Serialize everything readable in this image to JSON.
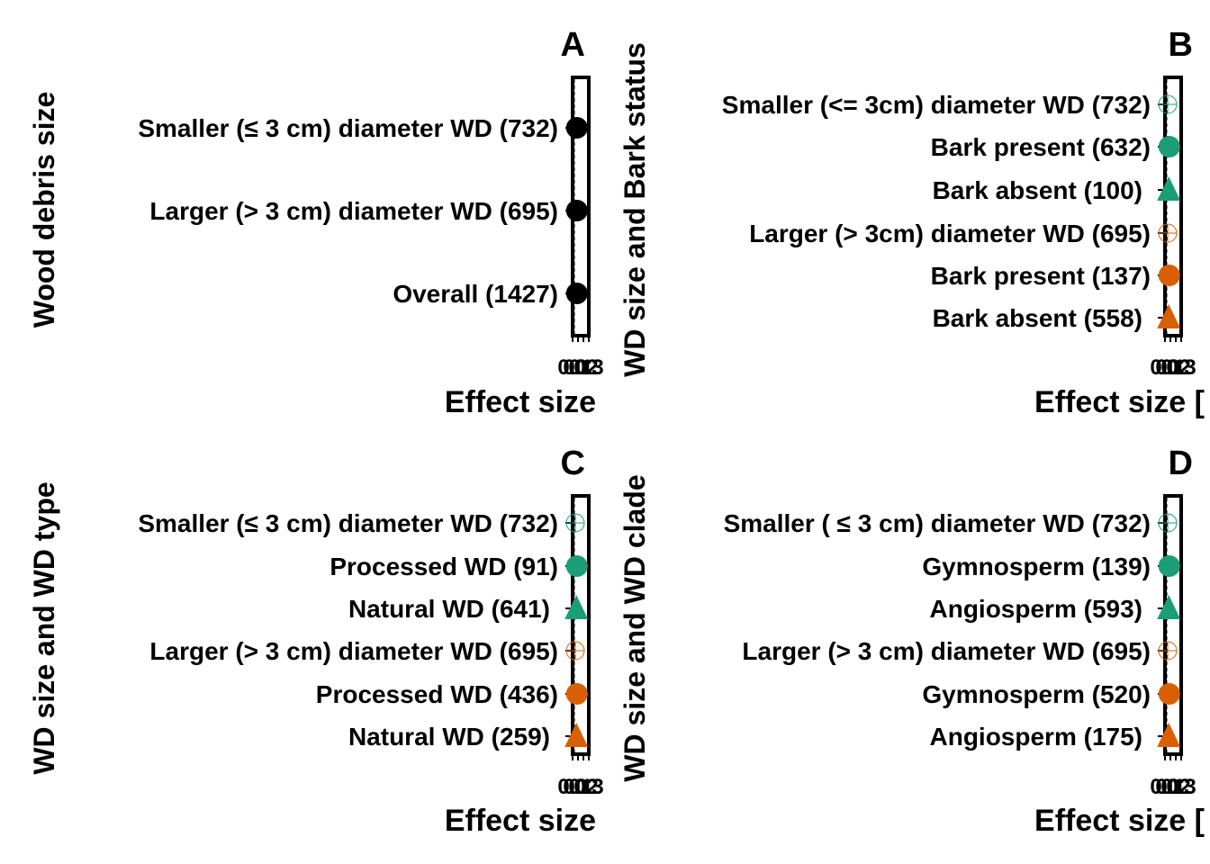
{
  "colors": {
    "ink": "#000000",
    "smaller": "#1b9e77",
    "larger": "#d95f02"
  },
  "chart_data": [
    {
      "type": "scatter",
      "panel_label": "A",
      "xlabel": "Effect size",
      "ylabel": "Wood debris size",
      "tick_labels": [
        "0.0",
        "0.1",
        "0.2",
        "0.3"
      ],
      "grid": false,
      "categories": [
        {
          "label": "Smaller (≤ 3 cm) diameter WD  (732)",
          "value": 0.08,
          "color": "#000000",
          "marker": "circle"
        },
        {
          "label": "Larger (> 3 cm) diameter WD (695)",
          "value": 0.08,
          "color": "#000000",
          "marker": "circle"
        },
        {
          "label": "Overall  (1427)",
          "value": 0.08,
          "color": "#000000",
          "marker": "circle"
        }
      ]
    },
    {
      "type": "scatter",
      "panel_label": "B",
      "xlabel": "Effect size [",
      "ylabel": "WD size and Bark status",
      "tick_labels": [
        "0.0",
        "0.1",
        "0.2",
        "0.3"
      ],
      "grid": false,
      "categories": [
        {
          "label": "Smaller (<= 3cm) diameter WD (732)",
          "value": 0.05,
          "color": "#1b9e77",
          "marker": "open-circle"
        },
        {
          "label": "Bark present (632)",
          "value": 0.08,
          "color": "#1b9e77",
          "marker": "circle"
        },
        {
          "label": "Bark  absent (100)",
          "value": 0.07,
          "color": "#1b9e77",
          "marker": "triangle"
        },
        {
          "label": "Larger (> 3cm) diameter WD (695)",
          "value": 0.05,
          "color": "#d95f02",
          "marker": "open-circle"
        },
        {
          "label": "Bark  present (137)",
          "value": 0.08,
          "color": "#d95f02",
          "marker": "circle"
        },
        {
          "label": "Bark  absent (558)",
          "value": 0.07,
          "color": "#d95f02",
          "marker": "triangle"
        }
      ]
    },
    {
      "type": "scatter",
      "panel_label": "C",
      "xlabel": "Effect size",
      "ylabel": "WD size and WD type",
      "tick_labels": [
        "0.0",
        "0.1",
        "0.2",
        "0.3"
      ],
      "grid": false,
      "categories": [
        {
          "label": "Smaller (≤ 3 cm) diameter WD (732)",
          "value": 0.05,
          "color": "#1b9e77",
          "marker": "open-circle"
        },
        {
          "label": "Processed WD (91)",
          "value": 0.08,
          "color": "#1b9e77",
          "marker": "circle"
        },
        {
          "label": "Natural WD (641)",
          "value": 0.07,
          "color": "#1b9e77",
          "marker": "triangle"
        },
        {
          "label": "Larger (> 3 cm) diameter WD (695)",
          "value": 0.05,
          "color": "#d95f02",
          "marker": "open-circle"
        },
        {
          "label": "Processed WD (436)",
          "value": 0.08,
          "color": "#d95f02",
          "marker": "circle"
        },
        {
          "label": "Natural WD (259)",
          "value": 0.07,
          "color": "#d95f02",
          "marker": "triangle"
        }
      ]
    },
    {
      "type": "scatter",
      "panel_label": "D",
      "xlabel": "Effect size [",
      "ylabel": "WD size and WD clade",
      "tick_labels": [
        "0.0",
        "0.1",
        "0.2",
        "0.3"
      ],
      "grid": false,
      "categories": [
        {
          "label": "Smaller ( ≤ 3 cm) diameter WD (732)",
          "value": 0.05,
          "color": "#1b9e77",
          "marker": "open-circle"
        },
        {
          "label": "Gymnosperm (139)",
          "value": 0.08,
          "color": "#1b9e77",
          "marker": "circle"
        },
        {
          "label": "Angiosperm (593)",
          "value": 0.07,
          "color": "#1b9e77",
          "marker": "triangle"
        },
        {
          "label": "Larger (> 3 cm) diameter WD  (695)",
          "value": 0.05,
          "color": "#d95f02",
          "marker": "open-circle"
        },
        {
          "label": "Gymnosperm (520)",
          "value": 0.08,
          "color": "#d95f02",
          "marker": "circle"
        },
        {
          "label": "Angiosperm (175)",
          "value": 0.07,
          "color": "#d95f02",
          "marker": "triangle"
        }
      ]
    }
  ]
}
